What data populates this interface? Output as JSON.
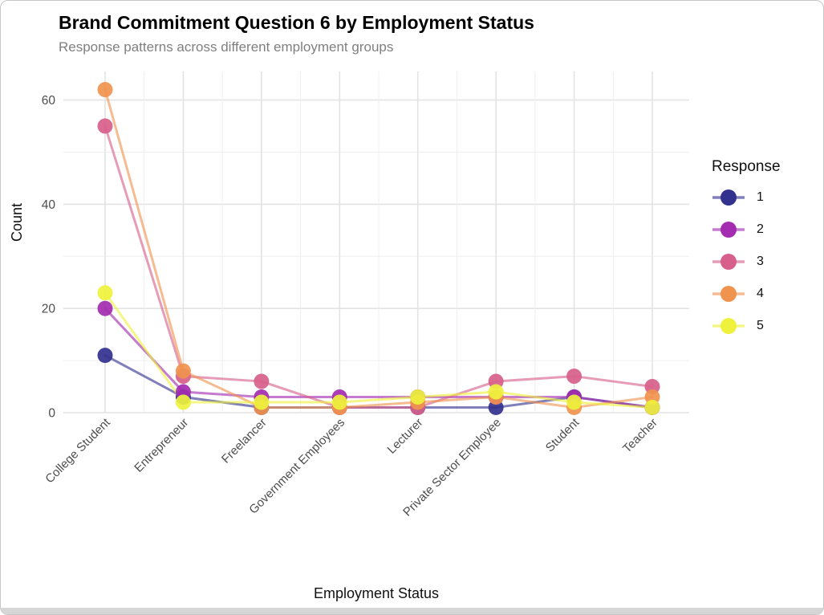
{
  "page": {
    "background": "#ffffff",
    "border_color": "#c6c6c6",
    "bottom_bar_color": "#d6d6d6"
  },
  "chart_data": {
    "type": "line",
    "title": "Brand Commitment Question 6 by Employment Status",
    "subtitle": "Response patterns across different employment groups",
    "xlabel": "Employment Status",
    "ylabel": "Count",
    "categories": [
      "College Student",
      "Entrepreneur",
      "Freelancer",
      "Government Employees",
      "Lecturer",
      "Private Sector Employee",
      "Student",
      "Teacher"
    ],
    "series": [
      {
        "name": "1",
        "color": "#32318e",
        "values": [
          11,
          3,
          1,
          1,
          1,
          1,
          3,
          1
        ]
      },
      {
        "name": "2",
        "color": "#a32cb0",
        "values": [
          20,
          4,
          3,
          3,
          3,
          3,
          3,
          1
        ]
      },
      {
        "name": "3",
        "color": "#d75f8b",
        "values": [
          55,
          7,
          6,
          1,
          1,
          6,
          7,
          5
        ]
      },
      {
        "name": "4",
        "color": "#f0934e",
        "values": [
          62,
          8,
          1,
          1,
          2,
          3,
          1,
          3
        ]
      },
      {
        "name": "5",
        "color": "#eef23c",
        "values": [
          23,
          2,
          2,
          2,
          3,
          4,
          2,
          1
        ]
      }
    ],
    "ylim": [
      0,
      65
    ],
    "yticks": [
      0,
      20,
      40,
      60
    ],
    "grid": true,
    "grid_major_color": "#e3e3e3",
    "grid_minor_color": "#efefef",
    "axis_text_color": "#4d4d4d",
    "legend_title": "Response",
    "legend_position": "right"
  }
}
